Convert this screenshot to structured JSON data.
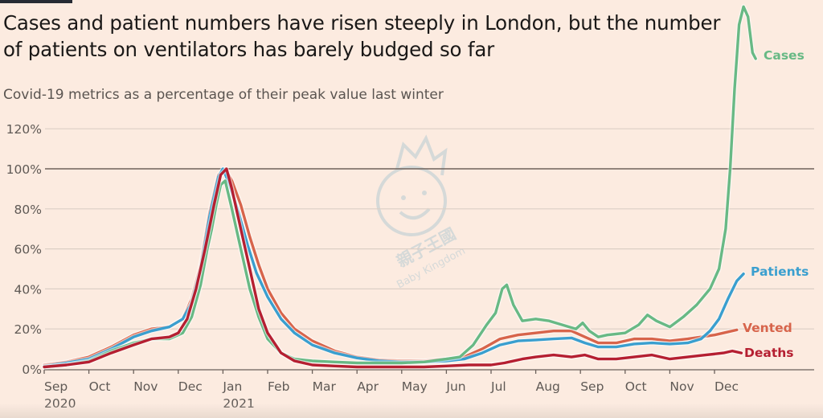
{
  "header": {
    "title": "Cases and patient numbers have risen steeply in London, but the number of patients on ventilators has barely budged so far",
    "subtitle": "Covid-19 metrics as a percentage of their peak value last winter"
  },
  "watermark": {
    "text_cn": "親子王國",
    "text_en": "Baby Kingdom"
  },
  "chart_data": {
    "type": "line",
    "title": "Cases and patient numbers have risen steeply in London, but the number of patients on ventilators has barely budged so far",
    "subtitle": "Covid-19 metrics as a percentage of their peak value last winter",
    "xlabel": "",
    "ylabel": "",
    "x_unit": "months since 1 Sep 2020",
    "xlim": [
      0,
      16
    ],
    "ylim": [
      0,
      120
    ],
    "yticks": [
      0,
      20,
      40,
      60,
      80,
      100,
      120
    ],
    "ytick_labels": [
      "0%",
      "20%",
      "40%",
      "60%",
      "80%",
      "100%",
      "120%"
    ],
    "highlight_line": 100,
    "grid": true,
    "xticks": [
      {
        "x": 0,
        "label": "Sep",
        "year": "2020"
      },
      {
        "x": 1,
        "label": "Oct",
        "year": ""
      },
      {
        "x": 2,
        "label": "Nov",
        "year": ""
      },
      {
        "x": 3,
        "label": "Dec",
        "year": ""
      },
      {
        "x": 4,
        "label": "Jan",
        "year": "2021"
      },
      {
        "x": 5,
        "label": "Feb",
        "year": ""
      },
      {
        "x": 6,
        "label": "Mar",
        "year": ""
      },
      {
        "x": 7,
        "label": "Apr",
        "year": ""
      },
      {
        "x": 8,
        "label": "May",
        "year": ""
      },
      {
        "x": 9,
        "label": "Jun",
        "year": ""
      },
      {
        "x": 10,
        "label": "Jul",
        "year": ""
      },
      {
        "x": 11,
        "label": "Aug",
        "year": ""
      },
      {
        "x": 12,
        "label": "Sep",
        "year": ""
      },
      {
        "x": 13,
        "label": "Oct",
        "year": ""
      },
      {
        "x": 14,
        "label": "Nov",
        "year": ""
      },
      {
        "x": 15,
        "label": "Dec",
        "year": ""
      }
    ],
    "legend": "inline-right-labels",
    "series": [
      {
        "name": "Vented",
        "color": "#d7644b",
        "points": [
          [
            0,
            2
          ],
          [
            0.5,
            3.5
          ],
          [
            1,
            6
          ],
          [
            1.5,
            11
          ],
          [
            2,
            17
          ],
          [
            2.4,
            20
          ],
          [
            2.8,
            21
          ],
          [
            3.1,
            25
          ],
          [
            3.3,
            35
          ],
          [
            3.5,
            52
          ],
          [
            3.7,
            78
          ],
          [
            3.9,
            97
          ],
          [
            4.05,
            100
          ],
          [
            4.2,
            94
          ],
          [
            4.4,
            82
          ],
          [
            4.6,
            66
          ],
          [
            4.8,
            52
          ],
          [
            5,
            40
          ],
          [
            5.3,
            28
          ],
          [
            5.6,
            20
          ],
          [
            6,
            14
          ],
          [
            6.5,
            9
          ],
          [
            7,
            6
          ],
          [
            7.5,
            4.5
          ],
          [
            8,
            4
          ],
          [
            8.5,
            4
          ],
          [
            9,
            5
          ],
          [
            9.4,
            6
          ],
          [
            9.8,
            10
          ],
          [
            10.2,
            15
          ],
          [
            10.6,
            17
          ],
          [
            11,
            18
          ],
          [
            11.4,
            19
          ],
          [
            11.8,
            19
          ],
          [
            12.1,
            16
          ],
          [
            12.4,
            13
          ],
          [
            12.8,
            13
          ],
          [
            13.2,
            15
          ],
          [
            13.6,
            15
          ],
          [
            14,
            14
          ],
          [
            14.4,
            15
          ],
          [
            14.7,
            16
          ],
          [
            15,
            17
          ],
          [
            15.2,
            18
          ],
          [
            15.5,
            19.5
          ]
        ]
      },
      {
        "name": "Patients",
        "color": "#3a9fcf",
        "points": [
          [
            0,
            1.5
          ],
          [
            0.5,
            3
          ],
          [
            1,
            5
          ],
          [
            1.5,
            10
          ],
          [
            2,
            16
          ],
          [
            2.4,
            19
          ],
          [
            2.8,
            21
          ],
          [
            3.1,
            25
          ],
          [
            3.3,
            33
          ],
          [
            3.5,
            50
          ],
          [
            3.7,
            76
          ],
          [
            3.9,
            96
          ],
          [
            4.0,
            100
          ],
          [
            4.15,
            92
          ],
          [
            4.35,
            78
          ],
          [
            4.55,
            62
          ],
          [
            4.75,
            48
          ],
          [
            5,
            36
          ],
          [
            5.3,
            25
          ],
          [
            5.6,
            18
          ],
          [
            6,
            12
          ],
          [
            6.5,
            8
          ],
          [
            7,
            5.5
          ],
          [
            7.5,
            4
          ],
          [
            8,
            3.5
          ],
          [
            8.5,
            3.5
          ],
          [
            9,
            4
          ],
          [
            9.4,
            5
          ],
          [
            9.8,
            8
          ],
          [
            10.2,
            12
          ],
          [
            10.6,
            14
          ],
          [
            11,
            14.5
          ],
          [
            11.4,
            15
          ],
          [
            11.8,
            15.5
          ],
          [
            12.1,
            13
          ],
          [
            12.4,
            11
          ],
          [
            12.8,
            11
          ],
          [
            13.2,
            12.5
          ],
          [
            13.6,
            13
          ],
          [
            14,
            12.5
          ],
          [
            14.4,
            13
          ],
          [
            14.7,
            15
          ],
          [
            14.9,
            19
          ],
          [
            15.1,
            25
          ],
          [
            15.3,
            35
          ],
          [
            15.5,
            44
          ],
          [
            15.65,
            47.5
          ]
        ]
      },
      {
        "name": "Cases",
        "color": "#68b985",
        "points": [
          [
            0,
            1
          ],
          [
            0.5,
            2
          ],
          [
            1,
            4
          ],
          [
            1.5,
            9
          ],
          [
            2,
            13
          ],
          [
            2.4,
            15
          ],
          [
            2.8,
            15
          ],
          [
            3.1,
            18
          ],
          [
            3.3,
            26
          ],
          [
            3.5,
            42
          ],
          [
            3.65,
            60
          ],
          [
            3.75,
            70
          ],
          [
            3.85,
            82
          ],
          [
            3.95,
            92
          ],
          [
            4.05,
            94
          ],
          [
            4.2,
            80
          ],
          [
            4.4,
            60
          ],
          [
            4.6,
            40
          ],
          [
            4.8,
            26
          ],
          [
            5,
            15
          ],
          [
            5.3,
            8
          ],
          [
            5.6,
            5
          ],
          [
            6,
            4
          ],
          [
            6.5,
            3.5
          ],
          [
            7,
            3
          ],
          [
            7.5,
            3
          ],
          [
            8,
            3
          ],
          [
            8.5,
            3.5
          ],
          [
            9,
            5
          ],
          [
            9.3,
            6
          ],
          [
            9.6,
            12
          ],
          [
            9.9,
            22
          ],
          [
            10.1,
            28
          ],
          [
            10.25,
            40
          ],
          [
            10.35,
            42
          ],
          [
            10.5,
            32
          ],
          [
            10.7,
            24
          ],
          [
            11,
            25
          ],
          [
            11.3,
            24
          ],
          [
            11.6,
            22
          ],
          [
            11.9,
            20
          ],
          [
            12.05,
            23
          ],
          [
            12.2,
            19
          ],
          [
            12.4,
            16
          ],
          [
            12.6,
            17
          ],
          [
            13,
            18
          ],
          [
            13.3,
            22
          ],
          [
            13.5,
            27
          ],
          [
            13.7,
            24
          ],
          [
            14,
            21
          ],
          [
            14.3,
            26
          ],
          [
            14.6,
            32
          ],
          [
            14.9,
            40
          ],
          [
            15.1,
            50
          ],
          [
            15.25,
            70
          ],
          [
            15.35,
            100
          ],
          [
            15.45,
            140
          ],
          [
            15.55,
            172
          ],
          [
            15.65,
            181
          ],
          [
            15.75,
            176
          ],
          [
            15.85,
            158
          ],
          [
            15.92,
            155
          ]
        ]
      },
      {
        "name": "Deaths",
        "color": "#b51f31",
        "points": [
          [
            0,
            1
          ],
          [
            0.5,
            2
          ],
          [
            1,
            3.5
          ],
          [
            1.5,
            8
          ],
          [
            2,
            12
          ],
          [
            2.4,
            15
          ],
          [
            2.8,
            16
          ],
          [
            3.0,
            18
          ],
          [
            3.2,
            25
          ],
          [
            3.4,
            40
          ],
          [
            3.6,
            60
          ],
          [
            3.8,
            82
          ],
          [
            3.95,
            97
          ],
          [
            4.08,
            100
          ],
          [
            4.2,
            90
          ],
          [
            4.4,
            70
          ],
          [
            4.6,
            50
          ],
          [
            4.8,
            30
          ],
          [
            5,
            18
          ],
          [
            5.3,
            8
          ],
          [
            5.6,
            4
          ],
          [
            6,
            2
          ],
          [
            6.5,
            1.5
          ],
          [
            7,
            1
          ],
          [
            7.5,
            1
          ],
          [
            8,
            1
          ],
          [
            8.5,
            1
          ],
          [
            9,
            1.5
          ],
          [
            9.5,
            2
          ],
          [
            10,
            2
          ],
          [
            10.3,
            3
          ],
          [
            10.7,
            5
          ],
          [
            11,
            6
          ],
          [
            11.4,
            7
          ],
          [
            11.8,
            6
          ],
          [
            12.1,
            7
          ],
          [
            12.4,
            5
          ],
          [
            12.8,
            5
          ],
          [
            13.2,
            6
          ],
          [
            13.6,
            7
          ],
          [
            14,
            5
          ],
          [
            14.4,
            6
          ],
          [
            14.8,
            7
          ],
          [
            15.2,
            8
          ],
          [
            15.4,
            9
          ],
          [
            15.6,
            8
          ]
        ]
      }
    ],
    "end_labels": [
      {
        "series": "Cases",
        "text": "Cases"
      },
      {
        "series": "Patients",
        "text": "Patients"
      },
      {
        "series": "Vented",
        "text": "Vented"
      },
      {
        "series": "Deaths",
        "text": "Deaths"
      }
    ]
  }
}
